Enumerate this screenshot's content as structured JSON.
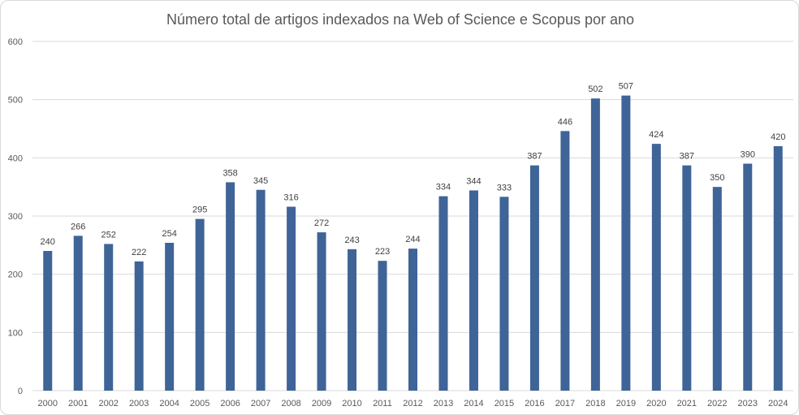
{
  "chart_data": {
    "type": "bar",
    "title": "Número total de artigos indexados na Web of Science e Scopus por ano",
    "xlabel": "",
    "ylabel": "",
    "categories": [
      "2000",
      "2001",
      "2002",
      "2003",
      "2004",
      "2005",
      "2006",
      "2007",
      "2008",
      "2009",
      "2010",
      "2011",
      "2012",
      "2013",
      "2014",
      "2015",
      "2016",
      "2017",
      "2018",
      "2019",
      "2020",
      "2021",
      "2022",
      "2023",
      "2024"
    ],
    "values": [
      240,
      266,
      252,
      222,
      254,
      295,
      358,
      345,
      316,
      272,
      243,
      223,
      244,
      334,
      344,
      333,
      387,
      446,
      502,
      507,
      424,
      387,
      350,
      390,
      420
    ],
    "ylim": [
      0,
      600
    ],
    "yticks": [
      0,
      100,
      200,
      300,
      400,
      500,
      600
    ],
    "grid": true,
    "legend": "none",
    "data_labels": true,
    "colors": {
      "bar": "#3f6497",
      "grid": "#d9d9d9",
      "text": "#595959"
    }
  }
}
